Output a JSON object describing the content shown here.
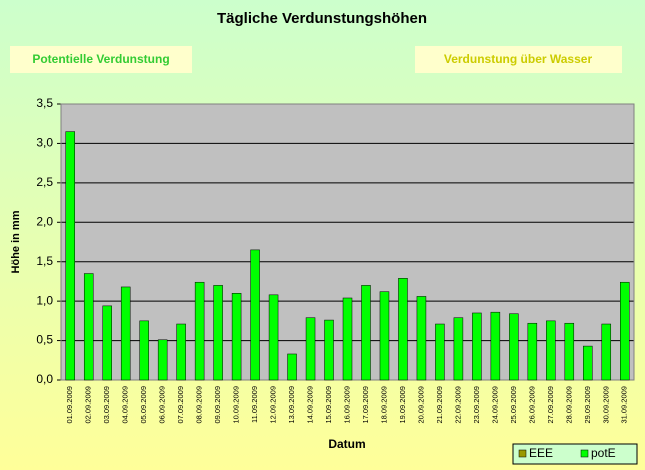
{
  "chart_data": {
    "type": "bar",
    "title": "Tägliche Verdunstungshöhen",
    "annotations": [
      "Potentielle Verdunstung",
      "Verdunstung über Wasser"
    ],
    "y_label": "Höhe in mm",
    "x_label": "Datum",
    "categories": [
      "01.09.2009",
      "02.09.2009",
      "03.09.2009",
      "04.09.2009",
      "05.09.2009",
      "06.09.2009",
      "07.09.2009",
      "08.09.2009",
      "09.09.2009",
      "10.09.2009",
      "11.09.2009",
      "12.09.2009",
      "13.09.2009",
      "14.09.2009",
      "15.09.2009",
      "16.09.2009",
      "17.09.2009",
      "18.09.2009",
      "19.09.2009",
      "20.09.2009",
      "21.09.2009",
      "22.09.2009",
      "23.09.2009",
      "24.09.2009",
      "25.09.2009",
      "26.09.2009",
      "27.09.2009",
      "28.09.2009",
      "29.09.2009",
      "30.09.2009",
      "31.09.2009"
    ],
    "series": [
      {
        "name": "EEE",
        "color": "#999900",
        "values": [
          null,
          null,
          null,
          null,
          null,
          null,
          null,
          null,
          null,
          null,
          null,
          null,
          null,
          null,
          null,
          null,
          null,
          null,
          null,
          null,
          null,
          null,
          null,
          null,
          null,
          null,
          null,
          null,
          null,
          null,
          null
        ]
      },
      {
        "name": "potE",
        "color": "#00ff00",
        "values": [
          3.15,
          1.35,
          0.94,
          1.18,
          0.75,
          0.51,
          0.71,
          1.24,
          1.2,
          1.1,
          1.65,
          1.08,
          0.33,
          0.79,
          0.76,
          1.04,
          1.2,
          1.12,
          1.29,
          1.06,
          0.71,
          0.79,
          0.85,
          0.86,
          0.84,
          0.72,
          0.75,
          0.72,
          0.43,
          0.71,
          1.24
        ]
      }
    ],
    "ylim": [
      0,
      3.5
    ],
    "yticks": [
      {
        "value": 0,
        "label": "0,0"
      },
      {
        "value": 0.5,
        "label": "0,5"
      },
      {
        "value": 1,
        "label": "1,0"
      },
      {
        "value": 1.5,
        "label": "1,5"
      },
      {
        "value": 2,
        "label": "2,0"
      },
      {
        "value": 2.5,
        "label": "2,5"
      },
      {
        "value": 3,
        "label": "3,0"
      },
      {
        "value": 3.5,
        "label": "3,5"
      }
    ],
    "grid": true,
    "legend": "bottom-right"
  }
}
